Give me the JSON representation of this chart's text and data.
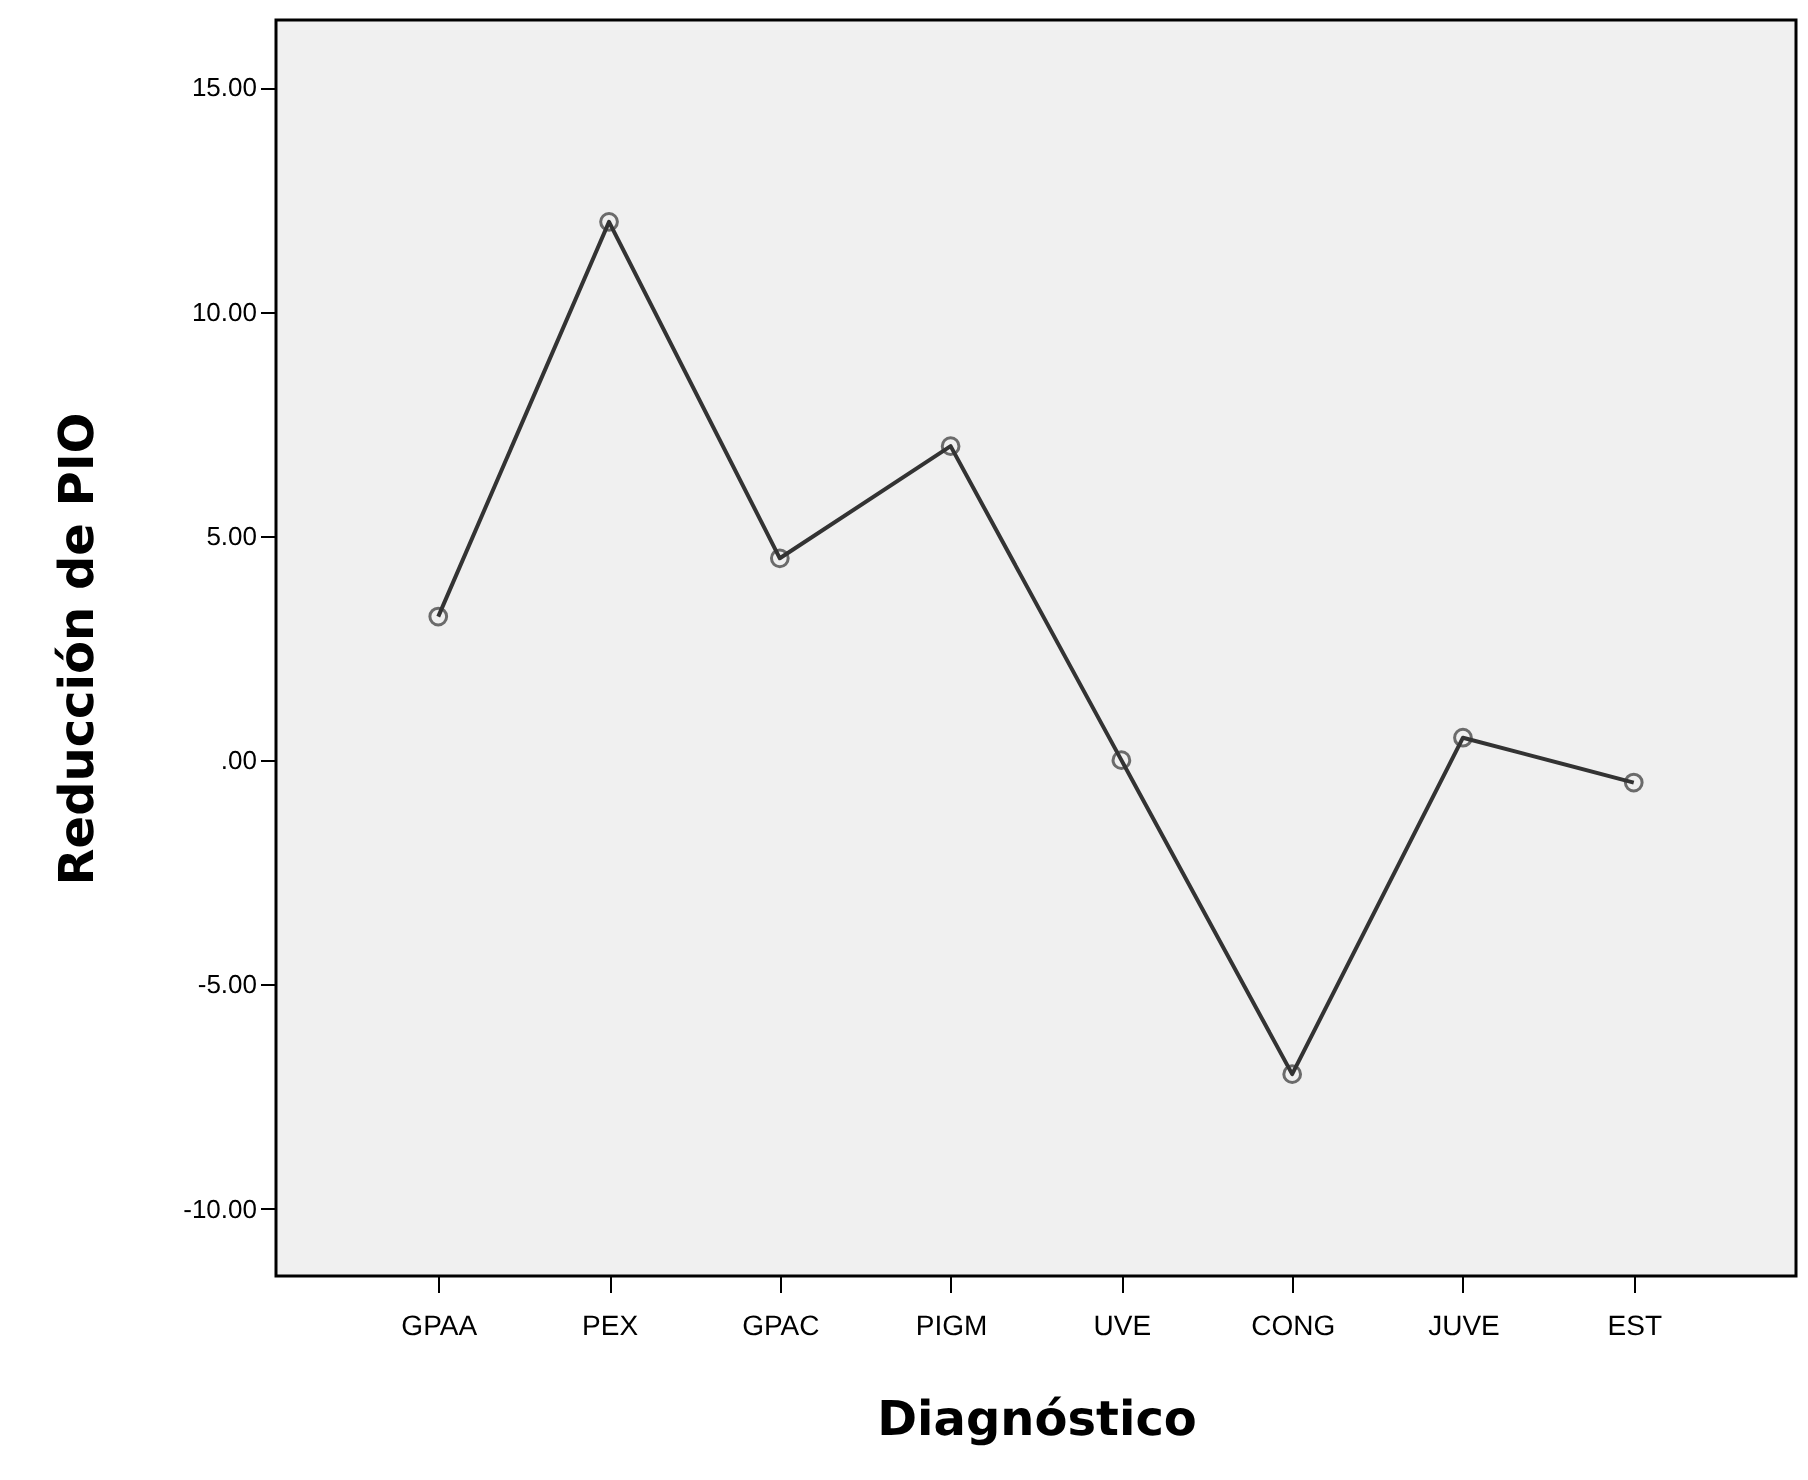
{
  "chart_data": {
    "type": "line",
    "xlabel": "Diagnóstico",
    "ylabel": "Reducción de PIO",
    "categories": [
      "GPAA",
      "PEX",
      "GPAC",
      "PIGM",
      "UVE",
      "CONG",
      "JUVE",
      "EST"
    ],
    "series": [
      {
        "color": "#333333",
        "values": [
          3.2,
          12.0,
          4.5,
          7.0,
          0.0,
          -7.0,
          0.5,
          -0.5
        ]
      }
    ],
    "ylim": [
      -11.5,
      16.5
    ],
    "yticks": [
      {
        "value": -10,
        "label": "-10.00"
      },
      {
        "value": -5,
        "label": "-5.00"
      },
      {
        "value": 0,
        "label": ".00"
      },
      {
        "value": 5,
        "label": "5.00"
      },
      {
        "value": 10,
        "label": "10.00"
      },
      {
        "value": 15,
        "label": "15.00"
      }
    ],
    "grid": false,
    "marker": "circle",
    "line_style": "solid"
  }
}
